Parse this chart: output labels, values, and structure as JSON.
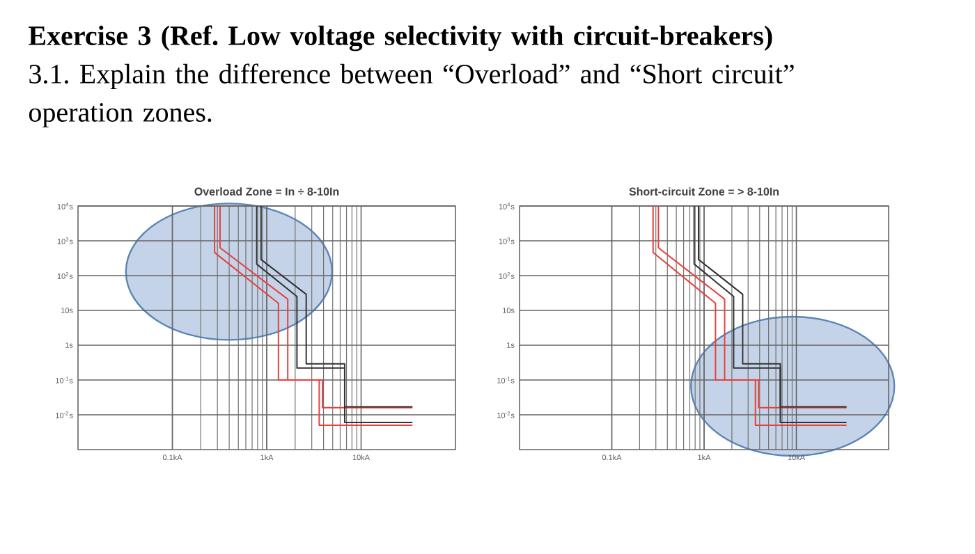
{
  "chart_data": [
    {
      "type": "line",
      "title": "Overload Zone = In ÷ 8-10In",
      "annotations": [
        "**Exercise 3 (Ref. Low voltage selectivity with circuit-breakers)**",
        "3.1. Explain the difference between “Overload” and “Short circuit” operation zones."
      ],
      "log": "xy",
      "grid": true,
      "line_style": "solid",
      "marker": "none",
      "xlim": [
        0.01,
        100
      ],
      "ylim": [
        0.001,
        10000
      ],
      "xticks": [
        {
          "value": 0.1,
          "label": "0.1kA"
        },
        {
          "value": 1,
          "label": "1kA"
        },
        {
          "value": 10,
          "label": "10kA"
        }
      ],
      "yticks": [
        {
          "value": 10000,
          "label": "10$^{4}$s"
        },
        {
          "value": 1000,
          "label": "10$^{3}$s"
        },
        {
          "value": 100,
          "label": "10$^{2}$s"
        },
        {
          "value": 10,
          "label": "10s"
        },
        {
          "value": 1,
          "label": "1s"
        },
        {
          "value": 0.1,
          "label": "10$^{-1}$s"
        },
        {
          "value": 0.01,
          "label": "10$^{-2}$s"
        }
      ],
      "series": [
        {
          "color": "#e8403a",
          "x": [
            0.28,
            0.28,
            1.33,
            1.33,
            3.6,
            3.6,
            35
          ],
          "values": [
            10000,
            460,
            16,
            0.1,
            0.1,
            0.005,
            0.005
          ]
        },
        {
          "color": "#e8403a",
          "x": [
            0.32,
            0.32,
            1.67,
            1.67,
            3.9,
            3.9,
            35
          ],
          "values": [
            10000,
            630,
            21,
            0.1,
            0.1,
            0.016,
            0.016
          ]
        },
        {
          "color": "#333333",
          "x": [
            0.78,
            0.78,
            2.09,
            2.09,
            6.7,
            6.7,
            35
          ],
          "values": [
            10000,
            215,
            25,
            0.22,
            0.22,
            0.006,
            0.006
          ]
        },
        {
          "color": "#333333",
          "x": [
            0.87,
            0.87,
            2.62,
            2.62,
            6.7,
            6.7,
            35
          ],
          "values": [
            10000,
            290,
            29,
            0.29,
            0.29,
            0.017,
            0.017
          ]
        }
      ]
    },
    {
      "type": "line",
      "title": "Short-circuit Zone = > 8-10In",
      "log": "xy",
      "grid": true,
      "line_style": "solid",
      "marker": "none",
      "xlim": [
        0.01,
        100
      ],
      "ylim": [
        0.001,
        10000
      ],
      "xticks": [
        {
          "value": 0.1,
          "label": "0.1kA"
        },
        {
          "value": 1,
          "label": "1kA"
        },
        {
          "value": 10,
          "label": "10kA"
        }
      ],
      "yticks": [
        {
          "value": 10000,
          "label": "10$^{4}$s"
        },
        {
          "value": 1000,
          "label": "10$^{3}$s"
        },
        {
          "value": 100,
          "label": "10$^{2}$s"
        },
        {
          "value": 10,
          "label": "10s"
        },
        {
          "value": 1,
          "label": "1s"
        },
        {
          "value": 0.1,
          "label": "10$^{-1}$s"
        },
        {
          "value": 0.01,
          "label": "10$^{-2}$s"
        }
      ],
      "series": [
        {
          "color": "#e8403a",
          "x": [
            0.28,
            0.28,
            1.33,
            1.33,
            3.6,
            3.6,
            35
          ],
          "values": [
            10000,
            460,
            16,
            0.1,
            0.1,
            0.005,
            0.005
          ]
        },
        {
          "color": "#e8403a",
          "x": [
            0.32,
            0.32,
            1.67,
            1.67,
            3.9,
            3.9,
            35
          ],
          "values": [
            10000,
            630,
            21,
            0.1,
            0.1,
            0.016,
            0.016
          ]
        },
        {
          "color": "#333333",
          "x": [
            0.78,
            0.78,
            2.09,
            2.09,
            6.7,
            6.7,
            35
          ],
          "values": [
            10000,
            215,
            25,
            0.22,
            0.22,
            0.006,
            0.006
          ]
        },
        {
          "color": "#333333",
          "x": [
            0.87,
            0.87,
            2.62,
            2.62,
            6.7,
            6.7,
            35
          ],
          "values": [
            10000,
            290,
            29,
            0.29,
            0.29,
            0.017,
            0.017
          ]
        }
      ]
    }
  ]
}
